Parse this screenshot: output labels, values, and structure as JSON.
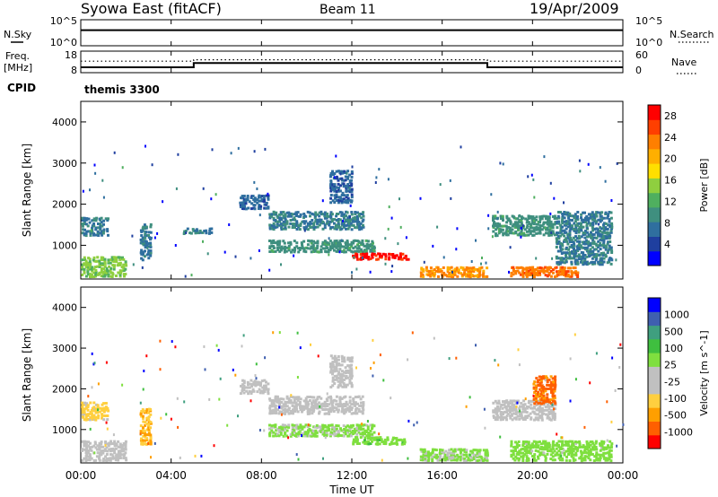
{
  "header": {
    "title": "Syowa East (fitACF)",
    "beam": "Beam 11",
    "date": "19/Apr/2009"
  },
  "noise_panel": {
    "left_label": "N.Sky",
    "right_label": "N.Search",
    "left_ticks": [
      "10^5",
      "10^0"
    ],
    "right_ticks": [
      "10^5",
      "10^0"
    ]
  },
  "freq_panel": {
    "left_label_line1": "Freq.",
    "left_label_line2": "[MHz]",
    "right_label": "Nave",
    "left_ticks": [
      "18",
      "8"
    ],
    "right_ticks": [
      "60",
      "0"
    ]
  },
  "cpid": {
    "label": "CPID",
    "value": "themis 3300"
  },
  "time_axis": {
    "title": "Time UT",
    "ticks": [
      "00:00",
      "04:00",
      "08:00",
      "12:00",
      "16:00",
      "20:00",
      "00:00"
    ]
  },
  "colors": {
    "power_scale": [
      "#0000ff",
      "#1f3f9f",
      "#2f6f9f",
      "#3f8f7f",
      "#4faf5f",
      "#8fcf3f",
      "#ffdf00",
      "#ffaf00",
      "#ff7f00",
      "#ff3f00",
      "#ff0000"
    ],
    "velocity_scale": [
      "#ff0000",
      "#ff5f00",
      "#ff9f00",
      "#ffcf3f",
      "#c0c0c0",
      "#c0c0c0",
      "#7fdf3f",
      "#3fbf3f",
      "#3f9f7f",
      "#3f5faf",
      "#0000ff"
    ]
  },
  "chart_data": [
    {
      "type": "line",
      "panel": "noise",
      "series": [
        {
          "name": "N.Sky",
          "x_hours": [
            0,
            24
          ],
          "values": [
            1000,
            1000
          ]
        }
      ]
    },
    {
      "type": "line",
      "panel": "frequency",
      "x_hours": [
        0,
        5,
        5,
        18,
        18,
        24
      ],
      "series": [
        {
          "name": "Freq.",
          "values": [
            10.5,
            10.5,
            12.5,
            12.5,
            10.5,
            10.5
          ]
        },
        {
          "name": "Nave",
          "values": [
            32,
            32,
            36,
            36,
            32,
            32
          ]
        }
      ],
      "ylim": [
        8,
        18
      ]
    },
    {
      "type": "heatmap",
      "panel": "power",
      "ylabel": "Slant Range [km]",
      "xlabel": "Time UT",
      "yticks": [
        "1000",
        "2000",
        "3000",
        "4000"
      ],
      "ylim": [
        180,
        4500
      ],
      "colorbar_label": "Power [dB]",
      "colorbar_ticks": [
        "4",
        "8",
        "12",
        "16",
        "20",
        "24",
        "28"
      ],
      "colorbar_range": [
        0,
        30
      ],
      "regions": [
        {
          "t0": 0.0,
          "t1": 1.2,
          "r0": 1200,
          "r1": 1650,
          "v": 8
        },
        {
          "t0": 0.0,
          "t1": 2.0,
          "r0": 200,
          "r1": 700,
          "v": 14
        },
        {
          "t0": 2.6,
          "t1": 3.1,
          "r0": 600,
          "r1": 1500,
          "v": 8
        },
        {
          "t0": 4.5,
          "t1": 5.8,
          "r0": 1250,
          "r1": 1400,
          "v": 8
        },
        {
          "t0": 7.0,
          "t1": 8.3,
          "r0": 1850,
          "r1": 2200,
          "v": 6
        },
        {
          "t0": 8.3,
          "t1": 12.5,
          "r0": 1350,
          "r1": 1800,
          "v": 8
        },
        {
          "t0": 11.0,
          "t1": 12.0,
          "r0": 2000,
          "r1": 2800,
          "v": 6
        },
        {
          "t0": 8.3,
          "t1": 13.0,
          "r0": 800,
          "r1": 1100,
          "v": 10
        },
        {
          "t0": 12.0,
          "t1": 14.5,
          "r0": 620,
          "r1": 780,
          "v": 28
        },
        {
          "t0": 15.0,
          "t1": 18.0,
          "r0": 200,
          "r1": 450,
          "v": 22
        },
        {
          "t0": 18.2,
          "t1": 21.0,
          "r0": 1200,
          "r1": 1700,
          "v": 10
        },
        {
          "t0": 19.0,
          "t1": 22.0,
          "r0": 200,
          "r1": 450,
          "v": 24
        },
        {
          "t0": 21.0,
          "t1": 23.5,
          "r0": 500,
          "r1": 1800,
          "v": 8
        }
      ]
    },
    {
      "type": "heatmap",
      "panel": "velocity",
      "ylabel": "Slant Range [km]",
      "xlabel": "Time UT",
      "yticks": [
        "1000",
        "2000",
        "3000",
        "4000"
      ],
      "ylim": [
        180,
        4500
      ],
      "colorbar_label": "Velocity [m s^-1]",
      "colorbar_ticks": [
        "1000",
        "500",
        "100",
        "25",
        "-25",
        "-100",
        "-500",
        "-1000"
      ],
      "colorbar_range": [
        -1200,
        1200
      ],
      "regions": [
        {
          "t0": 0.0,
          "t1": 1.2,
          "r0": 1200,
          "r1": 1650,
          "v": -400
        },
        {
          "t0": 0.0,
          "t1": 2.0,
          "r0": 200,
          "r1": 700,
          "v": -150
        },
        {
          "t0": 2.6,
          "t1": 3.1,
          "r0": 600,
          "r1": 1500,
          "v": -500
        },
        {
          "t0": 7.0,
          "t1": 8.3,
          "r0": 1850,
          "r1": 2200,
          "v": 0
        },
        {
          "t0": 8.3,
          "t1": 12.5,
          "r0": 1350,
          "r1": 1800,
          "v": 0
        },
        {
          "t0": 11.0,
          "t1": 12.0,
          "r0": 2000,
          "r1": 2800,
          "v": 0
        },
        {
          "t0": 8.3,
          "t1": 13.0,
          "r0": 800,
          "r1": 1100,
          "v": 150
        },
        {
          "t0": 12.0,
          "t1": 14.5,
          "r0": 600,
          "r1": 800,
          "v": 250
        },
        {
          "t0": 15.0,
          "t1": 18.0,
          "r0": 200,
          "r1": 500,
          "v": 150
        },
        {
          "t0": 18.2,
          "t1": 21.0,
          "r0": 1200,
          "r1": 1700,
          "v": -200
        },
        {
          "t0": 20.0,
          "t1": 21.0,
          "r0": 1600,
          "r1": 2300,
          "v": -800
        },
        {
          "t0": 19.0,
          "t1": 23.5,
          "r0": 200,
          "r1": 700,
          "v": 200
        }
      ]
    }
  ]
}
